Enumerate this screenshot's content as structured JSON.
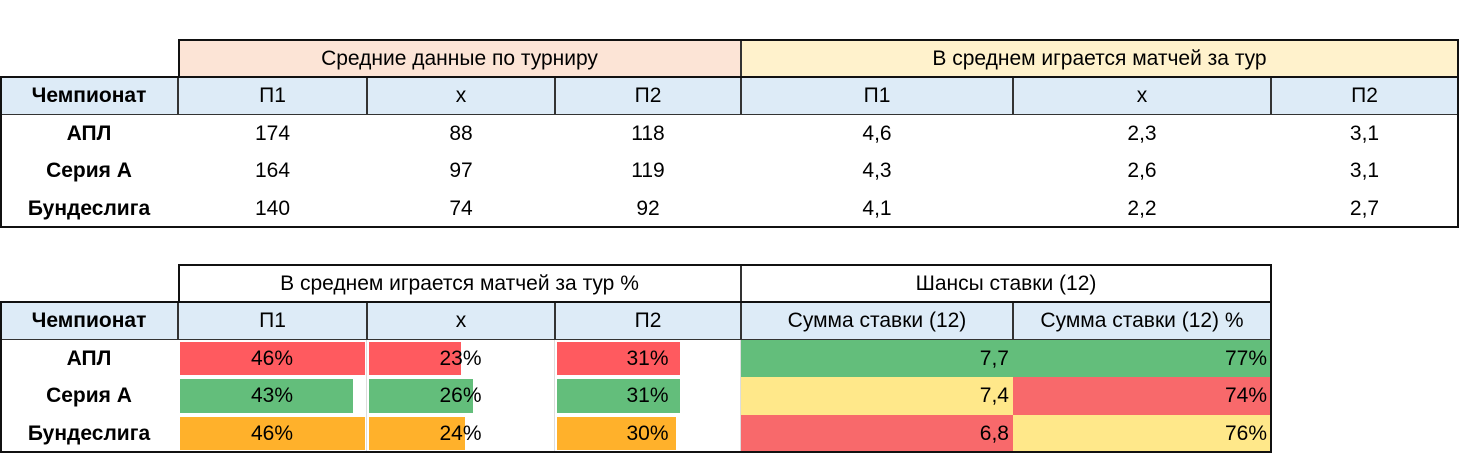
{
  "table1": {
    "groups": [
      "Средние данные по турниру",
      "В среднем играется матчей за тур"
    ],
    "header": [
      "Чемпионат",
      "П1",
      "х",
      "П2",
      "П1",
      "х",
      "П2"
    ],
    "rows": [
      [
        "АПЛ",
        "174",
        "88",
        "118",
        "4,6",
        "2,3",
        "3,1"
      ],
      [
        "Серия А",
        "164",
        "97",
        "119",
        "4,3",
        "2,6",
        "3,1"
      ],
      [
        "Бундеслига",
        "140",
        "74",
        "92",
        "4,1",
        "2,2",
        "2,7"
      ]
    ]
  },
  "table2": {
    "groups": [
      "В среднем играется матчей за тур %",
      "Шансы ставки (12)"
    ],
    "header": [
      "Чемпионат",
      "П1",
      "х",
      "П2",
      "Сумма ставки (12)",
      "Сумма ставки (12) %"
    ],
    "rows": [
      {
        "name": "АПЛ",
        "bar_color": "#ff5a5f",
        "shares": [
          {
            "value": 46,
            "label": "46%"
          },
          {
            "value": 23,
            "label": "23%"
          },
          {
            "value": 31,
            "label": "31%"
          }
        ],
        "sum": "7,7",
        "sum_color": "#63be7b",
        "sum_pct": "77%",
        "sum_pct_color": "#63be7b"
      },
      {
        "name": "Серия А",
        "bar_color": "#63be7b",
        "shares": [
          {
            "value": 43,
            "label": "43%"
          },
          {
            "value": 26,
            "label": "26%"
          },
          {
            "value": 31,
            "label": "31%"
          }
        ],
        "sum": "7,4",
        "sum_color": "#ffe88a",
        "sum_pct": "74%",
        "sum_pct_color": "#f8696b"
      },
      {
        "name": "Бундеслига",
        "bar_color": "#ffb12b",
        "shares": [
          {
            "value": 46,
            "label": "46%"
          },
          {
            "value": 24,
            "label": "24%"
          },
          {
            "value": 30,
            "label": "30%"
          }
        ],
        "sum": "6,8",
        "sum_color": "#f8696b",
        "sum_pct": "76%",
        "sum_pct_color": "#ffe88a"
      }
    ]
  }
}
